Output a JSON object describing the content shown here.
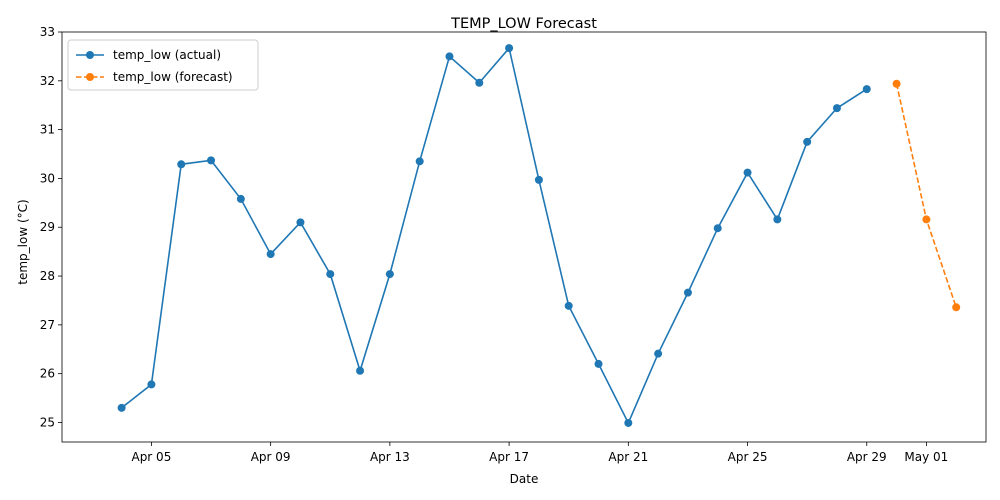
{
  "chart_data": {
    "type": "line",
    "title": "TEMP_LOW Forecast",
    "xlabel": "Date",
    "ylabel": "temp_low (°C)",
    "x_range": [
      "2026-04-02",
      "2026-05-03"
    ],
    "ylim": [
      24.6,
      33.0
    ],
    "y_ticks": [
      25,
      26,
      27,
      28,
      29,
      30,
      31,
      32,
      33
    ],
    "x_ticks": [
      {
        "date": "2026-04-05",
        "label": "Apr 05"
      },
      {
        "date": "2026-04-09",
        "label": "Apr 09"
      },
      {
        "date": "2026-04-13",
        "label": "Apr 13"
      },
      {
        "date": "2026-04-17",
        "label": "Apr 17"
      },
      {
        "date": "2026-04-21",
        "label": "Apr 21"
      },
      {
        "date": "2026-04-25",
        "label": "Apr 25"
      },
      {
        "date": "2026-04-29",
        "label": "Apr 29"
      },
      {
        "date": "2026-05-01",
        "label": "May 01"
      }
    ],
    "grid": false,
    "legend_position": "top-left",
    "series": [
      {
        "name": "temp_low (actual)",
        "color": "#1f77b4",
        "line_style": "solid",
        "marker": "circle",
        "x": [
          "2026-04-04",
          "2026-04-05",
          "2026-04-06",
          "2026-04-07",
          "2026-04-08",
          "2026-04-09",
          "2026-04-10",
          "2026-04-11",
          "2026-04-12",
          "2026-04-13",
          "2026-04-14",
          "2026-04-15",
          "2026-04-16",
          "2026-04-17",
          "2026-04-18",
          "2026-04-19",
          "2026-04-20",
          "2026-04-21",
          "2026-04-22",
          "2026-04-23",
          "2026-04-24",
          "2026-04-25",
          "2026-04-26",
          "2026-04-27",
          "2026-04-28",
          "2026-04-29"
        ],
        "values": [
          25.3,
          25.78,
          30.29,
          30.37,
          29.58,
          28.45,
          29.1,
          28.04,
          26.06,
          28.04,
          30.35,
          32.5,
          31.96,
          32.67,
          29.97,
          27.39,
          26.2,
          24.99,
          26.41,
          27.66,
          28.98,
          30.12,
          29.16,
          30.75,
          31.44,
          31.83
        ]
      },
      {
        "name": "temp_low (forecast)",
        "color": "#ff7f0e",
        "line_style": "dashed",
        "marker": "circle",
        "x": [
          "2026-04-30",
          "2026-05-01",
          "2026-05-02"
        ],
        "values": [
          31.94,
          29.16,
          27.36
        ]
      }
    ]
  }
}
